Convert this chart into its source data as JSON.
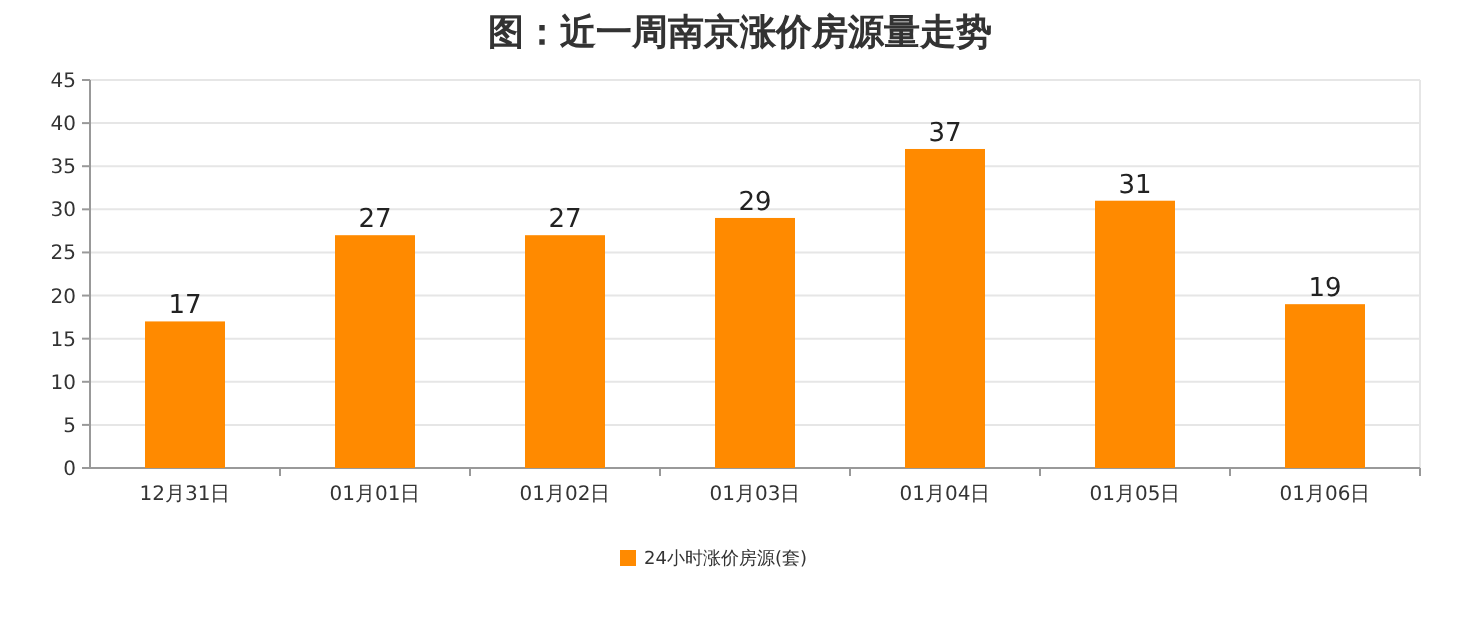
{
  "chart_data": {
    "type": "bar",
    "title": "图：近一周南京涨价房源量走势",
    "categories": [
      "12月31日",
      "01月01日",
      "01月02日",
      "01月03日",
      "01月04日",
      "01月05日",
      "01月06日"
    ],
    "series": [
      {
        "name": "24小时涨价房源(套)",
        "color": "#ff8a00",
        "values": [
          17,
          27,
          27,
          29,
          37,
          31,
          19
        ]
      }
    ],
    "ylim": [
      0,
      45
    ],
    "yticks": [
      0,
      5,
      10,
      15,
      20,
      25,
      30,
      35,
      40,
      45
    ],
    "grid": "y",
    "legend": "bottom",
    "data_labels": true
  }
}
